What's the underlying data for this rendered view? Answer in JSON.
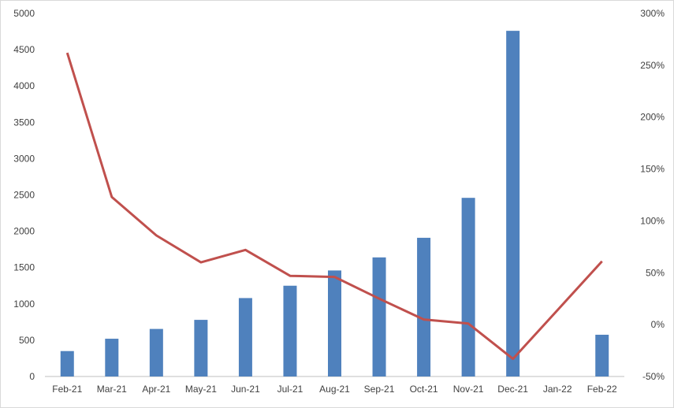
{
  "chart_data": {
    "type": "bar",
    "title": "",
    "xlabel": "",
    "ylabel": "",
    "categories": [
      "Feb-21",
      "Mar-21",
      "Apr-21",
      "May-21",
      "Jun-21",
      "Jul-21",
      "Aug-21",
      "Sep-21",
      "Oct-21",
      "Nov-21",
      "Dec-21",
      "Jan-22",
      "Feb-22"
    ],
    "series": [
      {
        "type": "bar",
        "axis": "left",
        "color": "#4f81bd",
        "values": [
          350,
          520,
          655,
          780,
          1080,
          1250,
          1460,
          1640,
          1910,
          2460,
          4760,
          null,
          575
        ]
      },
      {
        "type": "line",
        "axis": "right",
        "color": "#c0504d",
        "values": [
          2.62,
          1.23,
          0.86,
          0.6,
          0.72,
          0.47,
          0.46,
          0.25,
          0.05,
          0.01,
          -0.33,
          0.14,
          0.61
        ]
      }
    ],
    "ylim": [
      0,
      5000
    ],
    "yticks": [
      "0",
      "500",
      "1000",
      "1500",
      "2000",
      "2500",
      "3000",
      "3500",
      "4000",
      "4500",
      "5000"
    ],
    "y2lim": [
      -0.5,
      3.0
    ],
    "y2ticks": [
      "-50%",
      "0%",
      "50%",
      "100%",
      "150%",
      "200%",
      "250%",
      "300%"
    ],
    "grid": false,
    "legend": "none"
  }
}
